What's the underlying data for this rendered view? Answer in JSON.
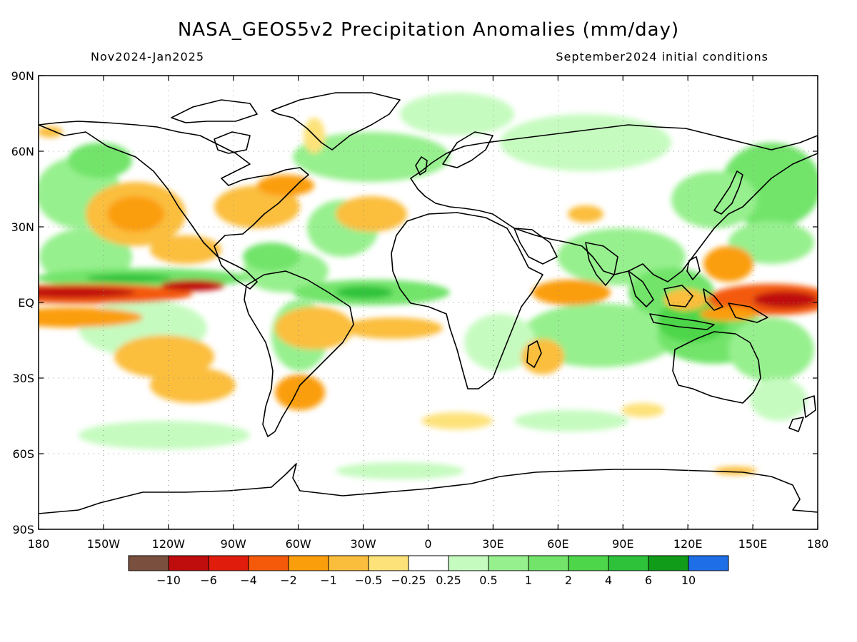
{
  "title": "NASA_GEOS5v2 Precipitation Anomalies (mm/day)",
  "subtitle_left": "Nov2024-Jan2025",
  "subtitle_right": "September2024 initial conditions",
  "axes": {
    "lon_labels": [
      "180",
      "150W",
      "120W",
      "90W",
      "60W",
      "30W",
      "0",
      "30E",
      "60E",
      "90E",
      "120E",
      "150E",
      "180"
    ],
    "lat_labels": [
      "90N",
      "60N",
      "30N",
      "EQ",
      "30S",
      "60S",
      "90S"
    ],
    "grid": "dotted"
  },
  "colorbar": {
    "colors": [
      "#7a4f3e",
      "#bf0c0c",
      "#e01c0c",
      "#f45a0a",
      "#fb9e0c",
      "#fbbe3c",
      "#fde27a",
      "#ffffff",
      "#c6fbc0",
      "#97f08e",
      "#72e46a",
      "#4ed64a",
      "#2ec23a",
      "#109c18",
      "#1e6ee8"
    ],
    "labels": [
      "−10",
      "−6",
      "−4",
      "−2",
      "−1",
      "−0.5",
      "−0.25",
      "0.25",
      "0.5",
      "1",
      "2",
      "4",
      "6",
      "10"
    ]
  }
}
